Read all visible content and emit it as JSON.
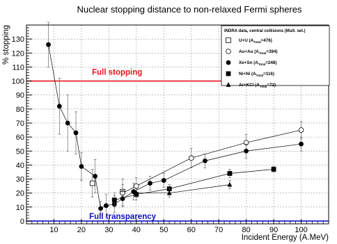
{
  "chart_data": {
    "type": "scatter",
    "title": "Nuclear stopping distance to non-relaxed Fermi spheres",
    "xlabel": "Incident Energy (A.MeV)",
    "ylabel": "% stopping",
    "xlim": [
      0,
      110
    ],
    "ylim": [
      -2,
      140
    ],
    "x_ticks": [
      10,
      20,
      30,
      40,
      50,
      60,
      70,
      80,
      90,
      100
    ],
    "y_ticks": [
      0,
      10,
      20,
      30,
      40,
      50,
      60,
      70,
      80,
      90,
      100,
      110,
      120,
      130
    ],
    "grid": true,
    "legend_position": "top-right",
    "legend_title": "INDRA data, central collisions (Mult. sel.)",
    "reference_lines": [
      {
        "name": "Full stopping",
        "y": 100,
        "color": "#e8141c"
      },
      {
        "name": "Full transparency",
        "y": 0,
        "color": "#1010c8"
      }
    ],
    "series": [
      {
        "name": "U+U",
        "total": "476",
        "marker": "open-square",
        "connected": false,
        "points": [
          {
            "x": 24,
            "y": 27,
            "err": 10
          },
          {
            "x": 35,
            "y": 21,
            "err": 5
          }
        ]
      },
      {
        "name": "Au+Au",
        "total": "394",
        "marker": "open-circle",
        "connected": true,
        "points": [
          {
            "x": 35,
            "y": 20,
            "err": 10
          },
          {
            "x": 40,
            "y": 25,
            "err": 6
          },
          {
            "x": 60,
            "y": 45,
            "err": 7
          },
          {
            "x": 80,
            "y": 56,
            "err": 6
          },
          {
            "x": 100,
            "y": 65,
            "err": 6
          }
        ]
      },
      {
        "name": "Xe+Sn",
        "total": "248",
        "marker": "filled-circle",
        "connected": true,
        "points": [
          {
            "x": 8,
            "y": 126,
            "err": 16
          },
          {
            "x": 12,
            "y": 82,
            "err": 20
          },
          {
            "x": 15,
            "y": 70,
            "err": 20
          },
          {
            "x": 18,
            "y": 63,
            "err": 15
          },
          {
            "x": 20,
            "y": 39,
            "err": 10
          },
          {
            "x": 25,
            "y": 32,
            "err": 12
          },
          {
            "x": 27,
            "y": 9,
            "err": 5
          },
          {
            "x": 29,
            "y": 11,
            "err": 8
          },
          {
            "x": 32,
            "y": 12,
            "err": 6
          },
          {
            "x": 35,
            "y": 16,
            "err": 5
          },
          {
            "x": 39,
            "y": 21,
            "err": 6
          },
          {
            "x": 45,
            "y": 27,
            "err": 5
          },
          {
            "x": 50,
            "y": 29,
            "err": 5
          },
          {
            "x": 65,
            "y": 43,
            "err": 5
          },
          {
            "x": 80,
            "y": 50,
            "err": 5
          },
          {
            "x": 100,
            "y": 55,
            "err": 5
          }
        ]
      },
      {
        "name": "Ni+Ni",
        "total": "116",
        "marker": "filled-square",
        "connected": true,
        "points": [
          {
            "x": 32,
            "y": 15,
            "err": 5
          },
          {
            "x": 40,
            "y": 19,
            "err": 4
          },
          {
            "x": 52,
            "y": 23,
            "err": 3
          },
          {
            "x": 74,
            "y": 34,
            "err": 3
          },
          {
            "x": 90,
            "y": 37,
            "err": 2
          }
        ]
      },
      {
        "name": "Ar+KCl",
        "total": "72",
        "marker": "filled-triangle",
        "connected": true,
        "points": [
          {
            "x": 40,
            "y": 20,
            "err": 3
          },
          {
            "x": 52,
            "y": 20,
            "err": 3
          },
          {
            "x": 74,
            "y": 26,
            "err": 3
          }
        ]
      }
    ]
  }
}
